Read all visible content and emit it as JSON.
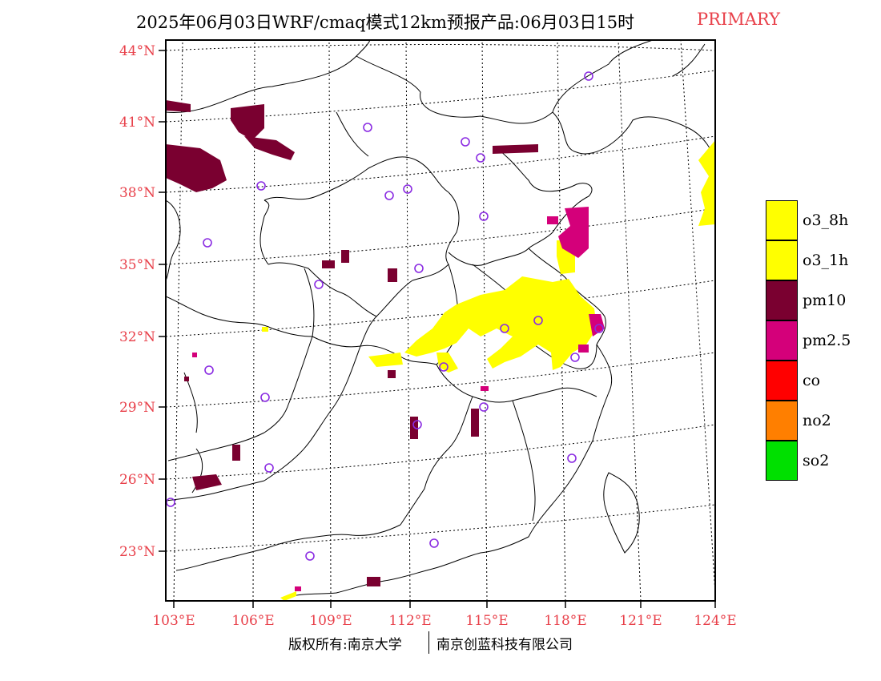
{
  "header": {
    "title": "2025年06月03日WRF/cmaq模式12km预报产品:06月03日15时",
    "pollutant_tag": "PRIMARY",
    "tag_color": "#e8404a"
  },
  "map": {
    "latitude_labels": [
      "44°N",
      "41°N",
      "38°N",
      "35°N",
      "32°N",
      "29°N",
      "26°N",
      "23°N"
    ],
    "longitude_labels": [
      "103°E",
      "106°E",
      "109°E",
      "112°E",
      "115°E",
      "118°E",
      "121°E",
      "124°E"
    ],
    "label_color": "#e8404a",
    "station_marker_color": "#8a2be2"
  },
  "legend": {
    "items": [
      {
        "label": "o3_8h",
        "color": "#ffff00"
      },
      {
        "label": "o3_1h",
        "color": "#ffff00"
      },
      {
        "label": "pm10",
        "color": "#7a0030"
      },
      {
        "label": "pm2.5",
        "color": "#d4007a"
      },
      {
        "label": "co",
        "color": "#ff0000"
      },
      {
        "label": "no2",
        "color": "#ff7f00"
      },
      {
        "label": "so2",
        "color": "#00e000"
      }
    ]
  },
  "footer": {
    "copyright": "版权所有:南京大学",
    "company": "南京创蓝科技有限公司"
  }
}
